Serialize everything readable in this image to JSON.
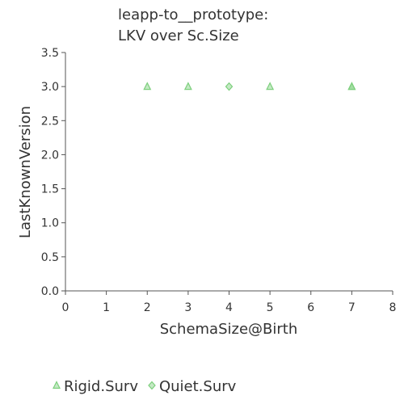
{
  "chart_data": {
    "type": "scatter",
    "title": [
      "leapp-to__prototype:",
      "LKV over Sc.Size"
    ],
    "xlabel": "SchemaSize@Birth",
    "ylabel": "LastKnownVersion",
    "xlim": [
      0,
      8
    ],
    "ylim": [
      0.0,
      3.5
    ],
    "xticks": [
      "0",
      "1",
      "2",
      "3",
      "4",
      "5",
      "6",
      "7",
      "8"
    ],
    "yticks": [
      "0.0",
      "0.5",
      "1.0",
      "1.5",
      "2.0",
      "2.5",
      "3.0",
      "3.5"
    ],
    "grid": false,
    "legend_position": "bottom-left",
    "series": [
      {
        "name": "Rigid.Surv",
        "marker": "triangle",
        "color": "#7ccf7c",
        "points": [
          {
            "x": 2,
            "y": 3.0
          },
          {
            "x": 3,
            "y": 3.0
          },
          {
            "x": 5,
            "y": 3.0
          },
          {
            "x": 7,
            "y": 3.0
          },
          {
            "x": 7,
            "y": 3.0
          }
        ]
      },
      {
        "name": "Quiet.Surv",
        "marker": "diamond",
        "color": "#7ccf7c",
        "points": [
          {
            "x": 4,
            "y": 3.0
          }
        ]
      }
    ]
  }
}
